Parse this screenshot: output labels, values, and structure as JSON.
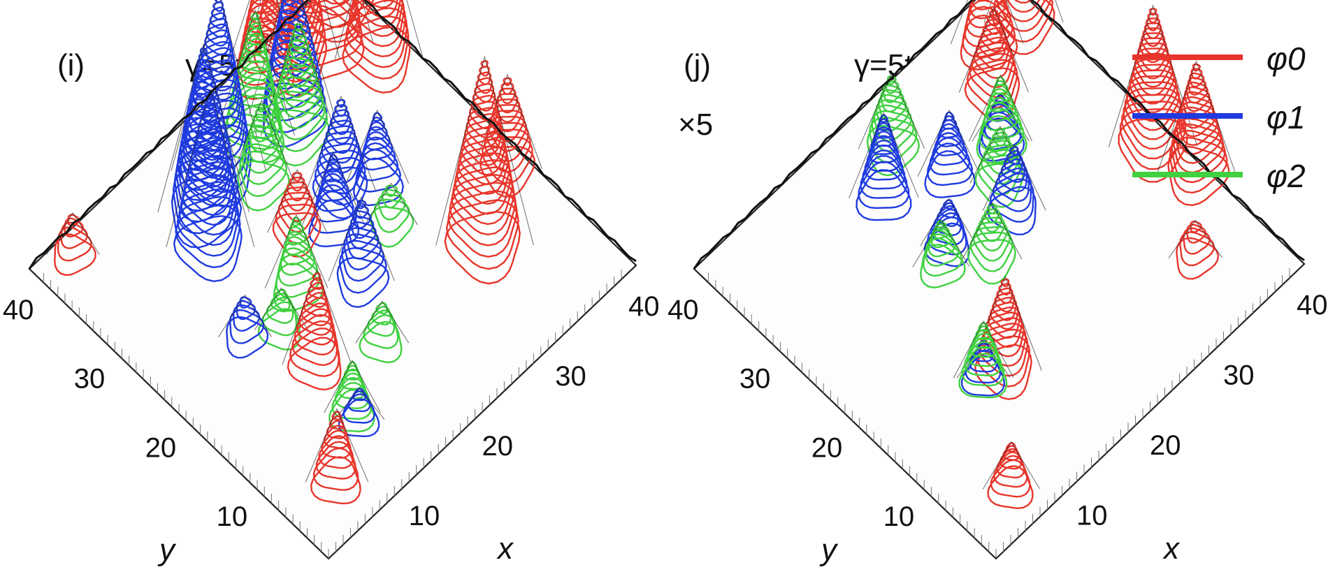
{
  "chart_data": [
    {
      "type": "contour3d",
      "panel_label": "(i)",
      "title": "γ=5t   l=1",
      "xlabel": "x",
      "ylabel": "y",
      "x_ticks": [
        "10",
        "20",
        "30",
        "40"
      ],
      "y_ticks": [
        "10",
        "20",
        "30",
        "40"
      ],
      "xlim": [
        0,
        42
      ],
      "ylim": [
        0,
        42
      ],
      "scale_note": "",
      "series": [
        {
          "name": "φ0",
          "color": "#e8352b",
          "peaks": [
            {
              "x": 40,
              "y": 40,
              "h": 0.9
            },
            {
              "x": 36,
              "y": 38,
              "h": 1.0
            },
            {
              "x": 33,
              "y": 39,
              "h": 0.85
            },
            {
              "x": 39,
              "y": 33,
              "h": 0.75
            },
            {
              "x": 30,
              "y": 40,
              "h": 0.55
            },
            {
              "x": 40,
              "y": 16,
              "h": 0.45
            },
            {
              "x": 33,
              "y": 12,
              "h": 0.9
            },
            {
              "x": 13,
              "y": 15,
              "h": 0.45
            },
            {
              "x": 21,
              "y": 26,
              "h": 0.3
            },
            {
              "x": 6,
              "y": 5,
              "h": 0.35
            },
            {
              "x": 4,
              "y": 40,
              "h": 0.2
            }
          ]
        },
        {
          "name": "φ1",
          "color": "#1f3be0",
          "peaks": [
            {
              "x": 20,
              "y": 36,
              "h": 0.85
            },
            {
              "x": 16,
              "y": 34,
              "h": 0.8
            },
            {
              "x": 14,
              "y": 31,
              "h": 0.75
            },
            {
              "x": 29,
              "y": 35,
              "h": 0.7
            },
            {
              "x": 27,
              "y": 26,
              "h": 0.45
            },
            {
              "x": 24,
              "y": 24,
              "h": 0.35
            },
            {
              "x": 22,
              "y": 18,
              "h": 0.4
            },
            {
              "x": 30,
              "y": 24,
              "h": 0.35
            },
            {
              "x": 10,
              "y": 22,
              "h": 0.2
            },
            {
              "x": 12,
              "y": 8,
              "h": 0.15
            }
          ]
        },
        {
          "name": "φ2",
          "color": "#3fd13f",
          "peaks": [
            {
              "x": 25,
              "y": 36,
              "h": 0.6
            },
            {
              "x": 28,
              "y": 33,
              "h": 0.55
            },
            {
              "x": 22,
              "y": 32,
              "h": 0.4
            },
            {
              "x": 17,
              "y": 22,
              "h": 0.35
            },
            {
              "x": 13,
              "y": 20,
              "h": 0.2
            },
            {
              "x": 19,
              "y": 12,
              "h": 0.2
            },
            {
              "x": 28,
              "y": 20,
              "h": 0.2
            },
            {
              "x": 12,
              "y": 9,
              "h": 0.25
            }
          ]
        }
      ]
    },
    {
      "type": "contour3d",
      "panel_label": "(j)",
      "title": "γ=5t  l=2",
      "xlabel": "x",
      "ylabel": "y",
      "x_ticks": [
        "10",
        "20",
        "30",
        "40"
      ],
      "y_ticks": [
        "10",
        "20",
        "30",
        "40"
      ],
      "xlim": [
        0,
        42
      ],
      "ylim": [
        0,
        42
      ],
      "scale_note": "×5",
      "series": [
        {
          "name": "φ0",
          "color": "#e8352b",
          "peaks": [
            {
              "x": 40,
              "y": 37,
              "h": 0.6
            },
            {
              "x": 36,
              "y": 38,
              "h": 0.5
            },
            {
              "x": 33,
              "y": 34,
              "h": 0.45
            },
            {
              "x": 40,
              "y": 19,
              "h": 0.75
            },
            {
              "x": 41,
              "y": 14,
              "h": 0.6
            },
            {
              "x": 14,
              "y": 13,
              "h": 0.5
            },
            {
              "x": 35,
              "y": 8,
              "h": 0.2
            },
            {
              "x": 6,
              "y": 4,
              "h": 0.25
            }
          ]
        },
        {
          "name": "φ1",
          "color": "#1f3be0",
          "peaks": [
            {
              "x": 18,
              "y": 34,
              "h": 0.45
            },
            {
              "x": 24,
              "y": 31,
              "h": 0.35
            },
            {
              "x": 26,
              "y": 24,
              "h": 0.35
            },
            {
              "x": 19,
              "y": 26,
              "h": 0.25
            },
            {
              "x": 30,
              "y": 30,
              "h": 0.25
            },
            {
              "x": 12,
              "y": 14,
              "h": 0.2
            }
          ]
        },
        {
          "name": "φ2",
          "color": "#3fd13f",
          "peaks": [
            {
              "x": 22,
              "y": 37,
              "h": 0.4
            },
            {
              "x": 30,
              "y": 30,
              "h": 0.35
            },
            {
              "x": 27,
              "y": 27,
              "h": 0.3
            },
            {
              "x": 21,
              "y": 22,
              "h": 0.3
            },
            {
              "x": 17,
              "y": 25,
              "h": 0.25
            },
            {
              "x": 12,
              "y": 14,
              "h": 0.3
            }
          ]
        }
      ]
    }
  ],
  "legend": {
    "placement": "top-right",
    "items": [
      {
        "name": "φ0",
        "color": "#e8352b"
      },
      {
        "name": "φ1",
        "color": "#1f3be0"
      },
      {
        "name": "φ2",
        "color": "#3fd13f"
      }
    ]
  }
}
